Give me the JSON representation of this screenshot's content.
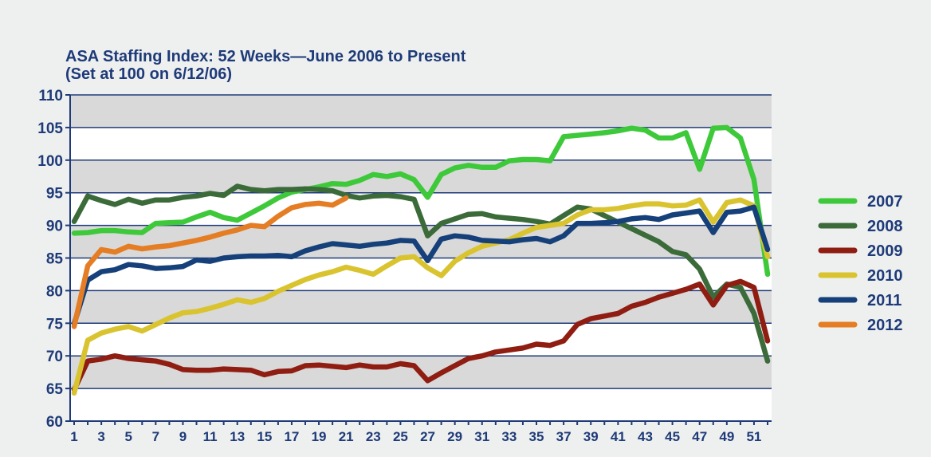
{
  "chart_data": {
    "type": "line",
    "title": "ASA Staffing Index: 52 Weeks—June 2006 to Present",
    "subtitle": "(Set at 100 on 6/12/06)",
    "xlabel": "",
    "ylabel": "",
    "ylim": [
      60,
      110
    ],
    "yticks": [
      60,
      65,
      70,
      75,
      80,
      85,
      90,
      95,
      100,
      105,
      110
    ],
    "xlim": [
      1,
      52
    ],
    "xticks": [
      1,
      3,
      5,
      7,
      9,
      11,
      13,
      15,
      17,
      19,
      21,
      23,
      25,
      27,
      29,
      31,
      33,
      35,
      37,
      39,
      41,
      43,
      45,
      47,
      49,
      51
    ],
    "grid": true,
    "legend_position": "right",
    "series": [
      {
        "name": "2007",
        "color": "#3ec93a",
        "values": [
          88.8,
          88.9,
          89.2,
          89.2,
          89.0,
          88.9,
          90.3,
          90.4,
          90.5,
          91.3,
          92.0,
          91.2,
          90.8,
          91.9,
          93.0,
          94.2,
          95.1,
          95.5,
          95.9,
          96.4,
          96.3,
          96.9,
          97.8,
          97.5,
          97.9,
          97.0,
          94.3,
          97.8,
          98.8,
          99.2,
          98.9,
          98.9,
          99.9,
          100.1,
          100.1,
          99.9,
          103.6,
          103.8,
          104.0,
          104.2,
          104.5,
          104.9,
          104.6,
          103.4,
          103.4,
          104.2,
          98.6,
          104.9,
          105.0,
          103.4,
          97.0,
          82.5
        ]
      },
      {
        "name": "2008",
        "color": "#3c6b3a",
        "values": [
          90.6,
          94.5,
          93.8,
          93.2,
          94.0,
          93.4,
          93.9,
          93.9,
          94.3,
          94.5,
          94.9,
          94.6,
          96.0,
          95.5,
          95.3,
          95.5,
          95.5,
          95.6,
          95.5,
          95.3,
          94.6,
          94.2,
          94.5,
          94.6,
          94.4,
          94.0,
          88.4,
          90.3,
          91.0,
          91.7,
          91.8,
          91.3,
          91.1,
          90.9,
          90.6,
          90.2,
          91.5,
          92.8,
          92.5,
          91.5,
          90.5,
          89.5,
          88.5,
          87.5,
          86.0,
          85.5,
          83.3,
          79.0,
          81.0,
          80.5,
          76.5,
          69.2
        ]
      },
      {
        "name": "2009",
        "color": "#8f1d12",
        "values": [
          64.8,
          69.2,
          69.5,
          70.0,
          69.6,
          69.4,
          69.2,
          68.7,
          67.9,
          67.8,
          67.8,
          68.0,
          67.9,
          67.8,
          67.1,
          67.6,
          67.7,
          68.5,
          68.6,
          68.4,
          68.2,
          68.6,
          68.3,
          68.3,
          68.8,
          68.5,
          66.2,
          67.4,
          68.5,
          69.6,
          70.0,
          70.6,
          70.9,
          71.2,
          71.8,
          71.6,
          72.3,
          74.8,
          75.7,
          76.1,
          76.5,
          77.6,
          78.2,
          79.0,
          79.6,
          80.2,
          81.0,
          77.8,
          80.8,
          81.4,
          80.5,
          72.3
        ]
      },
      {
        "name": "2010",
        "color": "#d9c42f",
        "values": [
          64.3,
          72.4,
          73.5,
          74.1,
          74.5,
          73.8,
          74.8,
          75.8,
          76.6,
          76.8,
          77.3,
          77.9,
          78.6,
          78.2,
          78.8,
          79.9,
          80.8,
          81.7,
          82.4,
          82.9,
          83.6,
          83.1,
          82.5,
          83.8,
          85.0,
          85.2,
          83.5,
          82.3,
          84.5,
          85.8,
          86.8,
          87.3,
          87.8,
          88.8,
          89.7,
          90.0,
          90.3,
          91.6,
          92.4,
          92.4,
          92.6,
          93.0,
          93.3,
          93.3,
          93.0,
          93.1,
          93.9,
          90.5,
          93.5,
          93.9,
          93.0,
          85.2
        ]
      },
      {
        "name": "2011",
        "color": "#16407a",
        "values": [
          74.9,
          81.6,
          82.9,
          83.2,
          84.0,
          83.8,
          83.4,
          83.5,
          83.7,
          84.7,
          84.5,
          85.0,
          85.2,
          85.3,
          85.3,
          85.4,
          85.2,
          86.1,
          86.7,
          87.2,
          87.0,
          86.8,
          87.1,
          87.3,
          87.7,
          87.6,
          84.6,
          87.9,
          88.4,
          88.2,
          87.7,
          87.6,
          87.5,
          87.8,
          88.0,
          87.5,
          88.4,
          90.3,
          90.3,
          90.4,
          90.6,
          91.0,
          91.2,
          90.9,
          91.6,
          91.9,
          92.2,
          88.9,
          92.0,
          92.2,
          92.8,
          86.3
        ]
      },
      {
        "name": "2012",
        "color": "#e47d24",
        "values": [
          74.5,
          83.8,
          86.3,
          85.9,
          86.8,
          86.4,
          86.7,
          86.9,
          87.3,
          87.7,
          88.2,
          88.8,
          89.3,
          90.0,
          89.8,
          91.4,
          92.7,
          93.2,
          93.4,
          93.1,
          94.2
        ]
      }
    ]
  }
}
